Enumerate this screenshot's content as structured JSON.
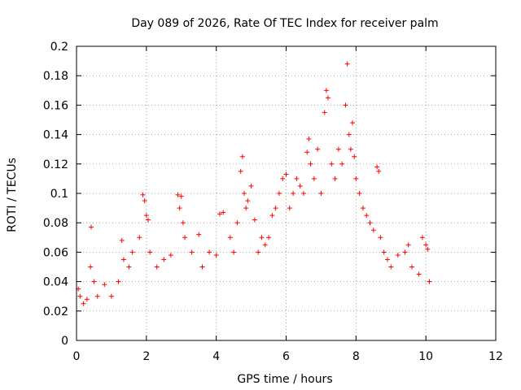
{
  "chart_data": {
    "type": "scatter",
    "title": "Day 089 of 2026, Rate Of TEC Index for receiver palm",
    "xlabel": "GPS time / hours",
    "ylabel": "ROTI / TECUs",
    "xlim": [
      0,
      12
    ],
    "ylim": [
      0,
      0.2
    ],
    "xticks": [
      0,
      2,
      4,
      6,
      8,
      10,
      12
    ],
    "yticks": [
      0,
      0.02,
      0.04,
      0.06,
      0.08,
      0.1,
      0.12,
      0.14,
      0.16,
      0.18,
      0.2
    ],
    "grid": true,
    "marker": "+",
    "marker_color": "#ff0000",
    "series": [
      {
        "name": "ROTI",
        "x": [
          0.05,
          0.1,
          0.2,
          0.3,
          0.4,
          0.42,
          0.5,
          0.6,
          0.8,
          1.0,
          1.2,
          1.3,
          1.35,
          1.5,
          1.6,
          1.8,
          1.9,
          1.95,
          2.0,
          2.05,
          2.1,
          2.3,
          2.5,
          2.7,
          2.9,
          2.95,
          3.0,
          3.05,
          3.1,
          3.3,
          3.5,
          3.6,
          3.8,
          4.0,
          4.1,
          4.2,
          4.4,
          4.5,
          4.6,
          4.7,
          4.75,
          4.8,
          4.85,
          4.9,
          5.0,
          5.1,
          5.2,
          5.3,
          5.4,
          5.5,
          5.6,
          5.7,
          5.8,
          5.9,
          6.0,
          6.1,
          6.2,
          6.3,
          6.4,
          6.5,
          6.6,
          6.65,
          6.7,
          6.8,
          6.9,
          7.0,
          7.1,
          7.15,
          7.2,
          7.3,
          7.4,
          7.5,
          7.6,
          7.7,
          7.75,
          7.8,
          7.85,
          7.9,
          7.95,
          8.0,
          8.1,
          8.2,
          8.3,
          8.4,
          8.5,
          8.6,
          8.65,
          8.7,
          8.8,
          8.9,
          9.0,
          9.2,
          9.4,
          9.5,
          9.6,
          9.8,
          9.9,
          10.0,
          10.05,
          10.1
        ],
        "y": [
          0.035,
          0.03,
          0.025,
          0.028,
          0.05,
          0.077,
          0.04,
          0.03,
          0.038,
          0.03,
          0.04,
          0.068,
          0.055,
          0.05,
          0.06,
          0.07,
          0.099,
          0.095,
          0.085,
          0.082,
          0.06,
          0.05,
          0.055,
          0.058,
          0.099,
          0.09,
          0.098,
          0.08,
          0.07,
          0.06,
          0.072,
          0.05,
          0.06,
          0.058,
          0.086,
          0.087,
          0.07,
          0.06,
          0.08,
          0.115,
          0.125,
          0.1,
          0.09,
          0.095,
          0.105,
          0.082,
          0.06,
          0.07,
          0.065,
          0.07,
          0.085,
          0.09,
          0.1,
          0.11,
          0.113,
          0.09,
          0.1,
          0.11,
          0.105,
          0.1,
          0.128,
          0.137,
          0.12,
          0.11,
          0.13,
          0.1,
          0.155,
          0.17,
          0.165,
          0.12,
          0.11,
          0.13,
          0.12,
          0.16,
          0.188,
          0.14,
          0.13,
          0.148,
          0.125,
          0.11,
          0.1,
          0.09,
          0.085,
          0.08,
          0.075,
          0.118,
          0.115,
          0.07,
          0.06,
          0.055,
          0.05,
          0.058,
          0.06,
          0.065,
          0.05,
          0.045,
          0.07,
          0.065,
          0.062,
          0.04
        ]
      }
    ]
  }
}
